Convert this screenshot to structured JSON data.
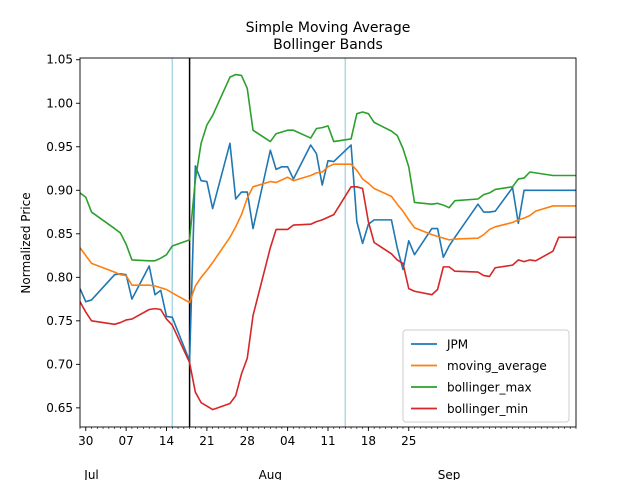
{
  "chart_data": {
    "type": "line",
    "title": "Simple Moving Average\nBollinger Bands",
    "title_lines": [
      "Simple Moving Average",
      "Bollinger Bands"
    ],
    "xlabel": "",
    "ylabel": "Normalized Price",
    "xlim": [
      "2011-06-29",
      "2011-09-23"
    ],
    "ylim": [
      0.628,
      1.052
    ],
    "yticks": [
      0.65,
      0.7,
      0.75,
      0.8,
      0.85,
      0.9,
      0.95,
      1.0,
      1.05
    ],
    "ytick_labels": [
      "0.65",
      "0.70",
      "0.75",
      "0.80",
      "0.85",
      "0.90",
      "0.95",
      "1.00",
      "1.05"
    ],
    "xticks": [
      "2011-06-30",
      "2011-07-07",
      "2011-07-14",
      "2011-07-21",
      "2011-07-28",
      "2011-08-04",
      "2011-08-11",
      "2011-08-18",
      "2011-08-25"
    ],
    "xtick_labels": [
      "30",
      "07",
      "14",
      "21",
      "28",
      "04",
      "11",
      "18",
      "25"
    ],
    "month_labels": [
      {
        "date": "2011-07-01",
        "label": "Jul"
      },
      {
        "date": "2011-08-01",
        "label": "Aug"
      },
      {
        "date": "2011-09-01",
        "label": "Sep"
      }
    ],
    "grid": false,
    "legend_position": "lower-right",
    "vertical_lines": [
      {
        "date": "2011-07-15",
        "color": "#add8e6"
      },
      {
        "date": "2011-07-18",
        "color": "#000000"
      },
      {
        "date": "2011-08-14",
        "color": "#add8e6"
      }
    ],
    "x": [
      "2011-06-29",
      "2011-06-30",
      "2011-07-01",
      "2011-07-05",
      "2011-07-06",
      "2011-07-07",
      "2011-07-08",
      "2011-07-11",
      "2011-07-12",
      "2011-07-13",
      "2011-07-14",
      "2011-07-15",
      "2011-07-18",
      "2011-07-19",
      "2011-07-20",
      "2011-07-21",
      "2011-07-22",
      "2011-07-25",
      "2011-07-26",
      "2011-07-27",
      "2011-07-28",
      "2011-07-29",
      "2011-08-01",
      "2011-08-02",
      "2011-08-03",
      "2011-08-04",
      "2011-08-05",
      "2011-08-08",
      "2011-08-09",
      "2011-08-10",
      "2011-08-11",
      "2011-08-12",
      "2011-08-15",
      "2011-08-16",
      "2011-08-17",
      "2011-08-18",
      "2011-08-19",
      "2011-08-22",
      "2011-08-23",
      "2011-08-24",
      "2011-08-25",
      "2011-08-26",
      "2011-08-29",
      "2011-08-30",
      "2011-08-31",
      "2011-09-01",
      "2011-09-02",
      "2011-09-06",
      "2011-09-07",
      "2011-09-08",
      "2011-09-09",
      "2011-09-12",
      "2011-09-13",
      "2011-09-14",
      "2011-09-15",
      "2011-09-16",
      "2011-09-19",
      "2011-09-20",
      "2011-09-21",
      "2011-09-22",
      "2011-09-23"
    ],
    "series": [
      {
        "name": "JPM",
        "color": "#1f77b4",
        "values": [
          0.787,
          0.772,
          0.774,
          0.803,
          0.804,
          0.803,
          0.775,
          0.813,
          0.78,
          0.785,
          0.755,
          0.754,
          0.704,
          0.928,
          0.911,
          0.91,
          0.879,
          0.954,
          0.89,
          0.898,
          0.898,
          0.856,
          0.946,
          0.924,
          0.927,
          0.927,
          0.913,
          0.952,
          0.942,
          0.906,
          0.934,
          0.933,
          0.952,
          0.864,
          0.839,
          0.861,
          0.866,
          0.866,
          0.834,
          0.809,
          0.842,
          0.826,
          0.856,
          0.856,
          0.823,
          0.836,
          0.846,
          0.884,
          0.875,
          0.875,
          0.876,
          0.903,
          0.862,
          0.9,
          0.9,
          0.9,
          0.9,
          0.9,
          0.9,
          0.9,
          0.9
        ]
      },
      {
        "name": "moving_average",
        "color": "#ff7f0e",
        "values": [
          0.834,
          0.825,
          0.816,
          0.806,
          0.803,
          0.802,
          0.791,
          0.791,
          0.79,
          0.788,
          0.786,
          0.782,
          0.771,
          0.79,
          0.8,
          0.808,
          0.817,
          0.846,
          0.858,
          0.872,
          0.891,
          0.904,
          0.91,
          0.909,
          0.912,
          0.915,
          0.911,
          0.917,
          0.92,
          0.921,
          0.927,
          0.93,
          0.93,
          0.923,
          0.913,
          0.908,
          0.902,
          0.893,
          0.884,
          0.876,
          0.866,
          0.857,
          0.849,
          0.847,
          0.845,
          0.843,
          0.844,
          0.845,
          0.849,
          0.855,
          0.858,
          0.863,
          0.866,
          0.868,
          0.871,
          0.876,
          0.882,
          0.882,
          0.882,
          0.882,
          0.882
        ]
      },
      {
        "name": "bollinger_max",
        "color": "#2ca02c",
        "values": [
          0.897,
          0.892,
          0.875,
          0.856,
          0.851,
          0.838,
          0.82,
          0.819,
          0.819,
          0.822,
          0.826,
          0.836,
          0.843,
          0.912,
          0.954,
          0.975,
          0.986,
          1.03,
          1.033,
          1.032,
          1.017,
          0.969,
          0.956,
          0.965,
          0.967,
          0.969,
          0.969,
          0.96,
          0.971,
          0.972,
          0.974,
          0.956,
          0.959,
          0.988,
          0.99,
          0.988,
          0.978,
          0.968,
          0.963,
          0.948,
          0.927,
          0.886,
          0.884,
          0.885,
          0.883,
          0.88,
          0.888,
          0.89,
          0.895,
          0.897,
          0.901,
          0.904,
          0.913,
          0.914,
          0.921,
          0.92,
          0.917,
          0.917,
          0.917,
          0.917,
          0.917
        ]
      },
      {
        "name": "bollinger_min",
        "color": "#d62728",
        "values": [
          0.772,
          0.76,
          0.75,
          0.746,
          0.748,
          0.751,
          0.752,
          0.763,
          0.764,
          0.763,
          0.752,
          0.745,
          0.702,
          0.668,
          0.656,
          0.652,
          0.648,
          0.655,
          0.664,
          0.689,
          0.707,
          0.756,
          0.834,
          0.855,
          0.855,
          0.855,
          0.86,
          0.861,
          0.864,
          0.866,
          0.869,
          0.872,
          0.904,
          0.904,
          0.902,
          0.864,
          0.84,
          0.827,
          0.82,
          0.816,
          0.787,
          0.784,
          0.78,
          0.786,
          0.812,
          0.812,
          0.807,
          0.806,
          0.802,
          0.801,
          0.811,
          0.814,
          0.82,
          0.818,
          0.82,
          0.819,
          0.83,
          0.846,
          0.846,
          0.846,
          0.846
        ]
      }
    ]
  }
}
